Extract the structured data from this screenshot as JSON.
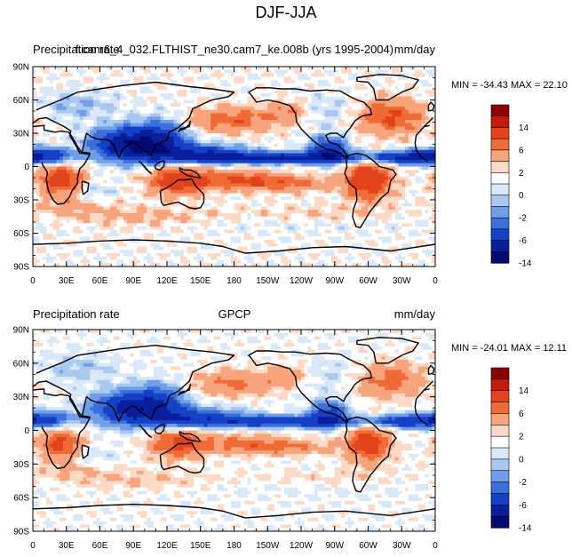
{
  "figure": {
    "title": "DJF-JJA"
  },
  "colorbar": {
    "colors": [
      "#8b0000",
      "#c61b0c",
      "#e2431a",
      "#f06b35",
      "#f7a47c",
      "#fcd9c4",
      "#ffffff",
      "#d8e8f8",
      "#a9c8f0",
      "#6f9fe8",
      "#3b6fdc",
      "#1540c8",
      "#0a1f9c",
      "#020b73"
    ],
    "labels": [
      "14",
      "6",
      "2",
      "0",
      "-2",
      "-6",
      "-14"
    ]
  },
  "panels": [
    {
      "left_label": "Precipitation rate",
      "center_label": "f.cam6_4_032.FLTHIST_ne30.cam7_ke.008b (yrs 1995-2004)",
      "units": "mm/day",
      "minmax": "MIN = -34.43 MAX =  22.10"
    },
    {
      "left_label": "Precipitation rate",
      "center_label": "GPCP",
      "units": "mm/day",
      "minmax": "MIN = -24.01 MAX =  12.11"
    }
  ],
  "chart_data": [
    {
      "type": "heatmap",
      "title": "f.cam6_4_032.FLTHIST_ne30.cam7_ke.008b (yrs 1995-2004)",
      "variable": "Precipitation rate",
      "units": "mm/day",
      "x_ticks": [
        "0",
        "30E",
        "60E",
        "90E",
        "120E",
        "150E",
        "180",
        "150W",
        "120W",
        "90W",
        "60W",
        "30W",
        "0"
      ],
      "y_ticks": [
        "90N",
        "60N",
        "30N",
        "0",
        "30S",
        "60S",
        "90S"
      ],
      "xlim": [
        0,
        360
      ],
      "ylim": [
        -90,
        90
      ],
      "min": -34.43,
      "max": 22.1,
      "levels": [
        -14,
        -10,
        -6,
        -4,
        -2,
        -1,
        0,
        1,
        2,
        4,
        6,
        10,
        14
      ]
    },
    {
      "type": "heatmap",
      "title": "GPCP",
      "variable": "Precipitation rate",
      "units": "mm/day",
      "x_ticks": [
        "0",
        "30E",
        "60E",
        "90E",
        "120E",
        "150E",
        "180",
        "150W",
        "120W",
        "90W",
        "60W",
        "30W",
        "0"
      ],
      "y_ticks": [
        "90N",
        "60N",
        "30N",
        "0",
        "30S",
        "60S",
        "90S"
      ],
      "xlim": [
        0,
        360
      ],
      "ylim": [
        -90,
        90
      ],
      "min": -24.01,
      "max": 12.11,
      "levels": [
        -14,
        -10,
        -6,
        -4,
        -2,
        -1,
        0,
        1,
        2,
        4,
        6,
        10,
        14
      ]
    }
  ]
}
